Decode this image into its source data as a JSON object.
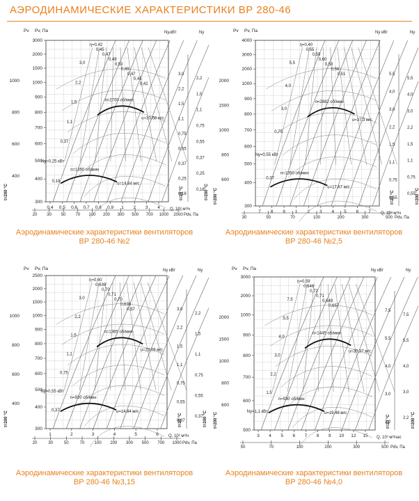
{
  "page": {
    "title": "АЭРОДИНАМИЧЕСКИЕ ХАРАКТЕРИСТИКИ ВР 280-46",
    "accent_color": "#e8801d"
  },
  "chart_data": [
    {
      "type": "line",
      "caption_line1": "Аэродинамические характеристики вентиляторов",
      "caption_line2": "ВР 280-46 №2",
      "labels": {
        "pv": "Pv, Па",
        "pv_left": "Pv",
        "nu": "Nу,кВт",
        "ny": "Nу",
        "q": "Q, 10³ м³/ч",
        "pdv": "Pdv, Па",
        "t200": "t=200 °C",
        "t20": "t=20 °C"
      },
      "y_ticks": [
        "300",
        "400",
        "500",
        "600",
        "700",
        "800",
        "900",
        "1000",
        "1500",
        "2000",
        "3000"
      ],
      "y_left_ticks": [
        "1000",
        "800",
        "600",
        "400"
      ],
      "x_ticks": [
        "0,4",
        "0,5",
        "0,6",
        "0,7",
        "0,8",
        "0,9",
        "1",
        "2",
        "3",
        "4"
      ],
      "pdv_ticks": [
        "20",
        "30",
        "50",
        "70",
        "100",
        "200",
        "300",
        "500",
        "700",
        "1000",
        "2000"
      ],
      "nu_ticks": [
        "3,0",
        "2,2",
        "1,5",
        "1,1",
        "0,75",
        "0,55",
        "0,37",
        "0,25",
        "0,18"
      ],
      "ny_ticks": [
        "2,2",
        "1,5",
        "1,1",
        "0,75",
        "0,55",
        "0,37",
        "0,25",
        "0,18"
      ],
      "eff": [
        "η=0,42",
        "0,45",
        "0,47",
        "0,49",
        "0,50",
        "0,49",
        "0,47",
        "0,45",
        "0,42"
      ],
      "power_labels": [
        "3,0",
        "2,2",
        "1,5",
        "1,1",
        "0,37",
        "Nу=0,25 кВт",
        "0,18"
      ],
      "rpm_high": "n=2700 об/мин",
      "rpm_low": "n=1350 об/мин",
      "vel_high": "u=30,68 м/с",
      "vel_low": "u=14,84 м/с",
      "grid": true
    },
    {
      "type": "line",
      "caption_line1": "Аэродинамические характеристики вентиляторов",
      "caption_line2": "ВР 280-46 №2,5",
      "labels": {
        "pv": "Pv, Па",
        "pv_left": "Pv",
        "nu": "Nу кВт",
        "ny": "Nу",
        "q": "Q, 10³ м³/ч",
        "pdv": "Pdv, Па",
        "t200": "t=200 °C",
        "t20": "t=20 °C"
      },
      "y_ticks": [
        "300",
        "400",
        "500",
        "600",
        "700",
        "800",
        "900",
        "1000",
        "2000",
        "3000",
        "4000"
      ],
      "y_left_ticks": [
        "2000",
        "1500",
        "1000",
        "800",
        "600"
      ],
      "x_ticks": [
        "7",
        "8",
        "9",
        "1",
        "2",
        "3",
        "4",
        "5",
        "6",
        "7"
      ],
      "pdv_ticks": [
        "30",
        "50",
        "70",
        "100",
        "200",
        "300",
        "500"
      ],
      "nu_ticks": [
        "5,5",
        "4,0",
        "3,0",
        "2,2",
        "1,5",
        "1,1",
        "0,75",
        "0,55"
      ],
      "ny_ticks": [
        "5,5",
        "4,0",
        "3,0",
        "2,2",
        "1,5",
        "1,1",
        "0,75",
        "0,55"
      ],
      "eff": [
        "η=0,40",
        "0,55",
        "0,59",
        "0,60",
        "0,58",
        "0,56",
        "0,51"
      ],
      "power_labels": [
        "5,5",
        "4,0",
        "3,0",
        "0,75",
        "Nу=0,55 кВт",
        "0,37"
      ],
      "rpm_high": "n=2882 об/мин",
      "rpm_low": "n=1350 об/мин",
      "vel_high": "u=37,3 м/с",
      "vel_low": "u=17,67 м/с",
      "grid": true
    },
    {
      "type": "line",
      "caption_line1": "Аэродинамические характеристики вентиляторов",
      "caption_line2": "ВР 280-46 №3,15",
      "labels": {
        "pv": "Pv, Па",
        "pv_left": "Pv",
        "nu": "Nу кВт",
        "ny": "Nу",
        "q": "Q, 10³ м³/ч",
        "pdv": "Pdv, Па",
        "t200": "t=200 °C",
        "t20": "t=20 °C"
      },
      "y_ticks": [
        "300",
        "400",
        "500",
        "600",
        "700",
        "800",
        "900",
        "1000",
        "1500",
        "2000",
        "2500"
      ],
      "y_left_ticks": [
        "1000",
        "800",
        "600",
        "400"
      ],
      "x_ticks": [
        "1",
        "2",
        "3",
        "4",
        "5",
        "6"
      ],
      "pdv_ticks": [
        "20",
        "30",
        "50",
        "70",
        "100",
        "200",
        "300",
        "500",
        "700",
        "1000"
      ],
      "nu_ticks": [
        "3,0",
        "2,2",
        "1,5",
        "1,1",
        "0,75",
        "0,55",
        "0,37"
      ],
      "ny_ticks": [
        "2,2",
        "1,5",
        "1,1",
        "0,75",
        "0,55",
        "0,37"
      ],
      "eff": [
        "η=0,60",
        "0,639",
        "0,70",
        "0,71",
        "0,70",
        "0,639",
        "0,57"
      ],
      "power_labels": [
        "3,0",
        "2,2",
        "1,5",
        "1,1",
        "0,75",
        "Nу=0,55 кВт",
        "0,37"
      ],
      "rpm_high": "n=1365 об/мин",
      "rpm_low": "n=920 об/мин",
      "vel_high": "u=23,09 м/с",
      "vel_low": "u=14,84 м/с",
      "grid": true
    },
    {
      "type": "line",
      "caption_line1": "Аэродинамические характеристики вентиляторов",
      "caption_line2": "ВР 280-46 №4,0",
      "labels": {
        "pv": "Pv, Па",
        "pv_left": "Pv",
        "nu": "Nу кВт",
        "ny": "Nу",
        "q": "Q, 10³ м³/час",
        "pdv": "Pdv, Па",
        "t200": "t=200 °C",
        "t20": "t=20 °C"
      },
      "y_ticks": [
        "500",
        "600",
        "700",
        "800",
        "900",
        "1000",
        "2000",
        "3000"
      ],
      "y_left_ticks": [
        "2000",
        "1500",
        "1000",
        "800",
        "600"
      ],
      "x_ticks": [
        "3",
        "4",
        "5",
        "6",
        "7",
        "8",
        "9",
        "10",
        "12",
        "15"
      ],
      "pdv_ticks": [
        "50",
        "70",
        "100",
        "200",
        "300",
        "500"
      ],
      "nu_ticks": [
        "7,5",
        "5,5",
        "4,0",
        "3,0",
        "2,2"
      ],
      "ny_ticks": [
        "7,5",
        "5,5",
        "4,0",
        "3,0",
        "2,2"
      ],
      "eff": [
        "η=0,59",
        "0,646",
        "0,72",
        "0,71",
        "0,649",
        "0,657"
      ],
      "power_labels": [
        "7,5",
        "5,5",
        "4,0",
        "3,0",
        "2,2",
        "1,5",
        "Nу=1,1 кВт"
      ],
      "rpm_high": "n=1445 об/мин",
      "rpm_low": "n=930 об/мин",
      "vel_high": "u=30,37 м/с",
      "vel_low": "u=19,48 м/с",
      "grid": true
    }
  ]
}
